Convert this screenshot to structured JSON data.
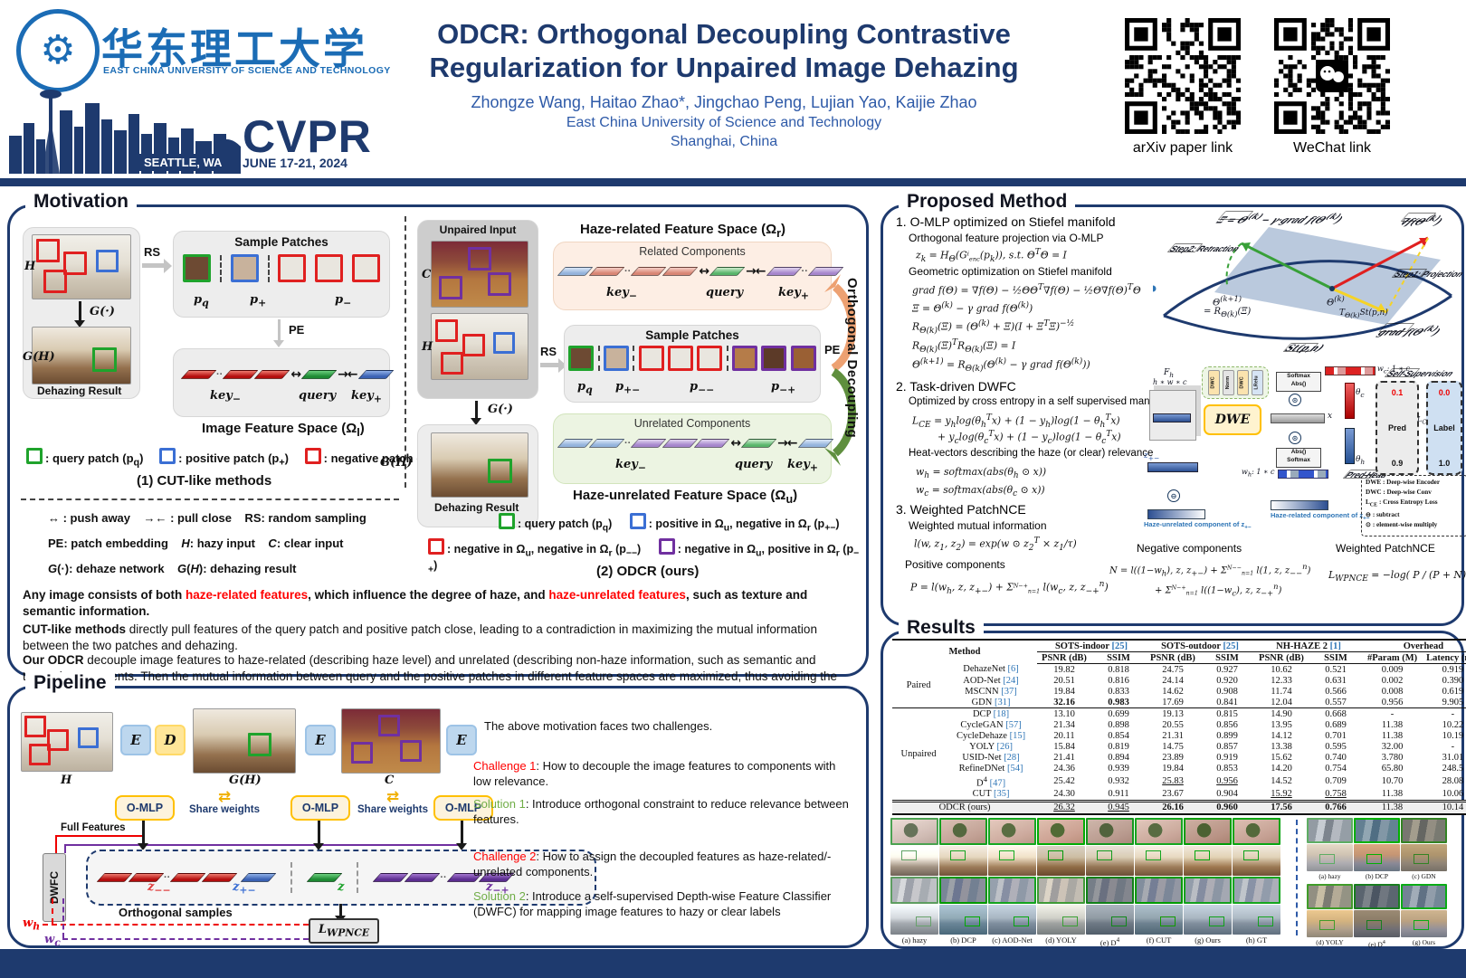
{
  "header": {
    "university_cn": "华东理工大学",
    "university_en": "EAST CHINA UNIVERSITY OF SCIENCE AND TECHNOLOGY",
    "conference": "CVPR",
    "conference_location": "SEATTLE, WA",
    "conference_dates": "JUNE 17-21, 2024",
    "title_line1": "ODCR: Orthogonal Decoupling Contrastive",
    "title_line2": "Regularization for Unpaired Image Dehazing",
    "authors": "Zhongze Wang, Haitao Zhao*, Jingchao Peng, Lujian Yao, Kaijie Zhao",
    "affiliation": "East China University of Science and Technology",
    "city": "Shanghai, China",
    "qr1_label": "arXiv paper link",
    "qr2_label": "WeChat link"
  },
  "motivation": {
    "section_title": "Motivation",
    "cut": {
      "h_label": "H",
      "g_fn": "G(·)",
      "gh_label": "G(H)",
      "dehazing_result": "Dehazing Result",
      "rs": "RS",
      "pe": "PE",
      "sample_patches_title": "Sample Patches",
      "pq": "p<sub>q</sub>",
      "pplus": "p<sub>+</sub>",
      "pminus": "p<sub>−</sub>",
      "keyminus": "key<sub>−</sub>",
      "query": "query",
      "keyplus": "key<sub>+</sub>",
      "feature_space_title": "Image Feature Space (Ω<sub>I</sub>)",
      "legend": [
        ": query patch (p<sub>q</sub>)",
        ": positive patch (p<sub>+</sub>)",
        ": negative patch (p<sub>−</sub>)"
      ],
      "caption": "(1) CUT-like methods"
    },
    "abbrev_lines": [
      "↔ : push away&nbsp;&nbsp;&nbsp; →← : pull close&nbsp;&nbsp;&nbsp; RS: random sampling",
      "PE: patch embedding&nbsp;&nbsp;&nbsp; <i>H</i>: hazy input&nbsp;&nbsp;&nbsp; <i>C</i>: clear input",
      "<i>G</i>(·): dehaze network&nbsp;&nbsp;&nbsp; <i>G</i>(<i>H</i>): dehazing result"
    ],
    "odcr": {
      "unpaired_input": "Unpaired Input",
      "c_label": "C",
      "h_label": "H",
      "g_fn": "G(·)",
      "gh_label": "G(H)",
      "dehazing_result": "Dehazing Result",
      "rs": "RS",
      "pe": "PE",
      "related_space_title": "Haze-related Feature Space (Ω<sub>r</sub>)",
      "related_components": "Related Components",
      "sample_patches_title": "Sample Patches",
      "pq": "p<sub>q</sub>",
      "ppm": "p<sub>+−</sub>",
      "pmm": "p<sub>−−</sub>",
      "pmp": "p<sub>−+</sub>",
      "keyminus": "key<sub>−</sub>",
      "query": "query",
      "keyplus": "key<sub>+</sub>",
      "unrelated_components": "Unrelated Components",
      "unrelated_space_title": "Haze-unrelated Feature Space (Ω<sub>u</sub>)",
      "orthogonal_decoupling": "Orthogonal Decoupling",
      "legend_line1": [
        ": query patch (p<sub>q</sub>)",
        ": positive in Ω<sub>u</sub>, negative in Ω<sub>r</sub> (p<sub>+−</sub>)"
      ],
      "legend_line2": [
        ": negative in Ω<sub>u</sub>, negative in Ω<sub>r</sub> (p<sub>−−</sub>)",
        ": negative in Ω<sub>u</sub>, positive in Ω<sub>r</sub> (p<sub>−+</sub>)"
      ],
      "caption": "(2) ODCR (ours)"
    },
    "paragraph1": "Any image consists of both <span class='red'>haze-related features</span>, which influence the degree of haze, and <span class='red'>haze-unrelated features</span>, such as texture and semantic information.",
    "paragraph2": "<b>CUT-like methods</b> directly pull features of the query patch and positive patch close, leading to a contradiction in maximizing the mutual information between the two patches and dehazing.",
    "paragraph3": "<b>Our ODCR</b> decouple image features to haze-related (describing haze level) and unrelated (describing non-haze information, such as semantic and texture) components. Then the mutual information between query and the positive patches in different feature spaces are maximized, thus avoiding the above contradiction."
  },
  "pipeline": {
    "section_title": "Pipeline",
    "h_label": "H",
    "gh_label": "G(H)",
    "c_label": "C",
    "e_label": "E",
    "d_label": "D",
    "omlp_label": "O-MLP",
    "share_weights": "Share weights",
    "share_arrows": "⇄",
    "full_features": "Full Features",
    "dwfc_label": "DWFC",
    "z_mm": "z<sub>−−</sub>",
    "z_pm": "z<sub>+−</sub>",
    "z": "z",
    "z_mp": "z<sub>−+</sub>",
    "orthogonal_samples": "Orthogonal samples",
    "loss_label": "L<sub>WPNCE</sub>",
    "w_h": "w<sub>h</sub>",
    "w_c": "w<sub>c</sub>",
    "intro": "The above motivation faces two challenges.",
    "challenge1_label": "Challenge 1",
    "challenge1_text": ": How to decouple the image features to components with low relevance.",
    "solution1_label": "Solution 1",
    "solution1_text": ": Introduce orthogonal constraint to reduce relevance between features.",
    "challenge2_label": "Challenge 2",
    "challenge2_text": ": How to assign the decoupled features as haze-related/-unrelated components.",
    "solution2_label": "Solution 2",
    "solution2_text": ": Introduce a self-supervised Depth-wise Feature Classifier (DWFC) for mapping image features to hazy or clear labels"
  },
  "method": {
    "section_title": "Proposed Method",
    "item1_heading": "1. O-MLP optimized on Stiefel manifold",
    "item1_sub1": "Orthogonal feature projection via O-MLP",
    "f_proj": "z<sub>k</sub> = H<sub>Θ</sub>(G<span style='font-size:8px'><sup>i</sup><sub>enc</sub></span>(p<sub>k</sub>)), s.t. Θ<sup>T</sup>Θ = I",
    "item1_sub2": "Geometric optimization on Stiefel manifold",
    "f_grad": "grad f(Θ) = ∇f(Θ) − ½ΘΘ<sup>T</sup>∇f(Θ) − ½Θ∇f(Θ)<sup>T</sup>Θ",
    "f_xi": "Ξ = Θ<sup>(k)</sup> − γ grad f(Θ<sup>(k)</sup>)",
    "f_retr": "R<sub>Θ(k)</sub>(Ξ) = (Θ<sup>(k)</sup> + Ξ)(I + Ξ<sup>T</sup>Ξ)<sup>−½</sup>",
    "f_orth": "R<sub>Θ(k)</sub>(Ξ)<sup>T</sup>R<sub>Θ(k)</sub>(Ξ) = I",
    "f_update": "Θ<sup>(k+1)</sup> = R<sub>Θ(k)</sub>(Θ<sup>(k)</sup> − γ grad f(Θ<sup>(k)</sup>))",
    "item2_heading": "2. Task-driven DWFC",
    "item2_sub1": "Optimized by cross entropy in a self supervised manner",
    "f_ce1": "L<sub>CE</sub> = y<sub>h</sub>log(θ<sub>h</sub><sup>T</sup>x) + (1 − y<sub>h</sub>)log(1 − θ<sub>h</sub><sup>T</sup>x)",
    "f_ce2": "+ y<sub>c</sub>log(θ<sub>c</sub><sup>T</sup>x) + (1 − y<sub>c</sub>)log(1 − θ<sub>c</sub><sup>T</sup>x)",
    "item2_sub2": "Heat-vectors describing the haze (or clear) relevance",
    "f_wh": "w<sub>h</sub> = softmax(abs(θ<sub>h</sub> ⊙ x))",
    "f_wc": "w<sub>c</sub> = softmax(abs(θ<sub>c</sub> ⊙ x))",
    "item3_heading": "3. Weighted PatchNCE",
    "item3_sub1": "Weighted mutual information",
    "f_l": "l(w, z<sub>1</sub>, z<sub>2</sub>) = exp(w ⊙ z<sub>2</sub><sup>T</sup> × z<sub>1</sub>/τ)",
    "positive_label": "Positive components",
    "f_pos": "P = l(w<sub>h</sub>, z, z<sub>+−</sub>) + Σ<span style='font-size:7.5px'><sup>N−+</sup><sub>n=1</sub></span> l(w<sub>c</sub>, z, z<sub>−+</sub><sup>n</sup>)",
    "negative_label": "Negative components",
    "f_neg1": "N = l((1−w<sub>h</sub>), z, z<sub>+−</sub>) + Σ<span style='font-size:7.5px'><sup>N−−</sup><sub>n=1</sub></span> l(1, z, z<sub>−−</sub><sup>n</sup>)",
    "f_neg2": "+ Σ<span style='font-size:7.5px'><sup>N−+</sup><sub>n=1</sub></span> l((1−w<sub>c</sub>), z, z<sub>−+</sub><sup>n</sup>)",
    "wpnce_label": "Weighted PatchNCE",
    "f_wpnce": "L<sub>WPNCE</sub> = −log( P / (P + N) )",
    "stiefel": {
      "xi": "Ξ = Θ<sup>(k)</sup> − γ·grad f(Θ<sup>(k)</sup>)",
      "nabla": "∇f(Θ<sup>(k)</sup>)",
      "step2": "Step2: Retraction",
      "step1": "Step1: Projection",
      "theta_k": "Θ<sup>(k)</sup>",
      "theta_k1": "Θ<sup>(k+1)</sup>",
      "retraction": "= R<sub>Θ(k)</sub>(Ξ)",
      "tangent": "T<sub>Θ(k)</sub>St(p,n)",
      "gradf": "grad f(Θ<sup>(k)</sup>)",
      "manifold": "St(p,n)"
    },
    "dwfc": {
      "fh": "F<sub>h</sub>",
      "dims": "h ∗ w ∗ c",
      "dwe": "DWE",
      "chips": [
        "DWC",
        "Norm",
        "DWC",
        "LRelu"
      ],
      "x": "x",
      "wc_dim": "w<sub>c</sub>: 1 ∗ c",
      "wh_dim": "w<sub>h</sub>: 1 ∗ c",
      "softmax": "Softmax",
      "abs": "Abs()",
      "theta_c": "θ<sub>c</sub>",
      "theta_h": "θ<sub>h</sub>",
      "self_supervision": "Self-Supervision",
      "pred": "Pred",
      "label": "Label",
      "v01": "0.1",
      "v09": "0.9",
      "v00": "0.0",
      "v10": "1.0",
      "lce": "L<sub>CE</sub>",
      "pred_head": "Pred Head",
      "z_pm": "z<sub>+−</sub>",
      "haze_unrelated": "Haze-unrelated component of z<sub>+−</sub>",
      "haze_related": "Haze-related component of z<sub>+−</sub>",
      "legend": [
        "DWE : Deep-wise Encoder",
        "DWC : Deep-wise Conv",
        "L<sub>CE</sub> : Cross Entropy Loss",
        "⊖ : subtract",
        "⊙ : element-wise multiply"
      ]
    }
  },
  "results": {
    "section_title": "Results",
    "table": {
      "method_header": "Method",
      "col_groups": [
        "SOTS-indoor <span class='cite'>[25]</span>",
        "SOTS-outdoor <span class='cite'>[25]</span>",
        "NH-HAZE 2 <span class='cite'>[1]</span>",
        "Overhead"
      ],
      "sub_headers": [
        "PSNR (dB)",
        "SSIM",
        "PSNR (dB)",
        "SSIM",
        "PSNR (dB)",
        "SSIM",
        "#Param (M)",
        "Latency (ms)"
      ],
      "groups": [
        {
          "name": "Paired",
          "rows": [
            {
              "method": "DehazeNet <span class='cite'>[6]</span>",
              "vals": [
                "19.82",
                "0.818",
                "24.75",
                "0.927",
                "10.62",
                "0.521",
                "0.009",
                "0.919"
              ],
              "fmt": [
                "",
                "",
                "",
                "",
                "",
                "",
                "",
                ""
              ]
            },
            {
              "method": "AOD-Net <span class='cite'>[24]</span>",
              "vals": [
                "20.51",
                "0.816",
                "24.14",
                "0.920",
                "12.33",
                "0.631",
                "0.002",
                "0.390"
              ],
              "fmt": [
                "",
                "",
                "",
                "",
                "",
                "",
                "",
                ""
              ]
            },
            {
              "method": "MSCNN <span class='cite'>[37]</span>",
              "vals": [
                "19.84",
                "0.833",
                "14.62",
                "0.908",
                "11.74",
                "0.566",
                "0.008",
                "0.619"
              ],
              "fmt": [
                "",
                "",
                "",
                "",
                "",
                "",
                "",
                ""
              ]
            },
            {
              "method": "GDN <span class='cite'>[31]</span>",
              "vals": [
                "32.16",
                "0.983",
                "17.69",
                "0.841",
                "12.04",
                "0.557",
                "0.956",
                "9.905"
              ],
              "fmt": [
                "b",
                "b",
                "",
                "",
                "",
                "",
                "",
                ""
              ]
            }
          ]
        },
        {
          "name": "Unpaired",
          "rows": [
            {
              "method": "DCP <span class='cite'>[18]</span>",
              "vals": [
                "13.10",
                "0.699",
                "19.13",
                "0.815",
                "14.90",
                "0.668",
                "-",
                "-"
              ],
              "fmt": [
                "",
                "",
                "",
                "",
                "",
                "",
                "",
                ""
              ]
            },
            {
              "method": "CycleGAN <span class='cite'>[57]</span>",
              "vals": [
                "21.34",
                "0.898",
                "20.55",
                "0.856",
                "13.95",
                "0.689",
                "11.38",
                "10.22"
              ],
              "fmt": [
                "",
                "",
                "",
                "",
                "",
                "",
                "",
                ""
              ]
            },
            {
              "method": "CycleDehaze <span class='cite'>[15]</span>",
              "vals": [
                "20.11",
                "0.854",
                "21.31",
                "0.899",
                "14.12",
                "0.701",
                "11.38",
                "10.19"
              ],
              "fmt": [
                "",
                "",
                "",
                "",
                "",
                "",
                "",
                ""
              ]
            },
            {
              "method": "YOLY <span class='cite'>[26]</span>",
              "vals": [
                "15.84",
                "0.819",
                "14.75",
                "0.857",
                "13.38",
                "0.595",
                "32.00",
                "-"
              ],
              "fmt": [
                "",
                "",
                "",
                "",
                "",
                "",
                "",
                ""
              ]
            },
            {
              "method": "USID-Net <span class='cite'>[28]</span>",
              "vals": [
                "21.41",
                "0.894",
                "23.89",
                "0.919",
                "15.62",
                "0.740",
                "3.780",
                "31.01"
              ],
              "fmt": [
                "",
                "",
                "",
                "",
                "",
                "",
                "",
                ""
              ]
            },
            {
              "method": "RefineDNet <span class='cite'>[54]</span>",
              "vals": [
                "24.36",
                "0.939",
                "19.84",
                "0.853",
                "14.20",
                "0.754",
                "65.80",
                "248.5"
              ],
              "fmt": [
                "",
                "",
                "",
                "",
                "",
                "",
                "",
                ""
              ]
            },
            {
              "method": "D<sup>4</sup> <span class='cite'>[47]</span>",
              "vals": [
                "25.42",
                "0.932",
                "25.83",
                "0.956",
                "14.52",
                "0.709",
                "10.70",
                "28.08"
              ],
              "fmt": [
                "",
                "",
                "u",
                "u",
                "",
                "",
                "",
                ""
              ]
            },
            {
              "method": "CUT <span class='cite'>[35]</span>",
              "vals": [
                "24.30",
                "0.911",
                "23.67",
                "0.904",
                "15.92",
                "0.758",
                "11.38",
                "10.06"
              ],
              "fmt": [
                "",
                "",
                "",
                "",
                "u",
                "u",
                "",
                ""
              ]
            }
          ]
        }
      ],
      "final_row": {
        "method": "ODCR (ours)",
        "vals": [
          "26.32",
          "0.945",
          "26.16",
          "0.960",
          "17.56",
          "0.766",
          "11.38",
          "10.14"
        ],
        "fmt": [
          "u",
          "u",
          "b",
          "b",
          "b",
          "b",
          "",
          ""
        ]
      }
    },
    "figures": {
      "left_captions": [
        "(a) hazy",
        "(b) DCP",
        "(c) AOD-Net",
        "(d) YOLY",
        "(e) D<sup>4</sup>",
        "(f) CUT",
        "(g) Ours",
        "(h) GT"
      ],
      "right_blocks": [
        {
          "captions": [
            "(a) hazy",
            "(b) DCP",
            "(c) GDN"
          ]
        },
        {
          "captions": [
            "(d) YOLY",
            "(e) D<sup>4</sup>",
            "(g) Ours"
          ]
        }
      ]
    }
  }
}
